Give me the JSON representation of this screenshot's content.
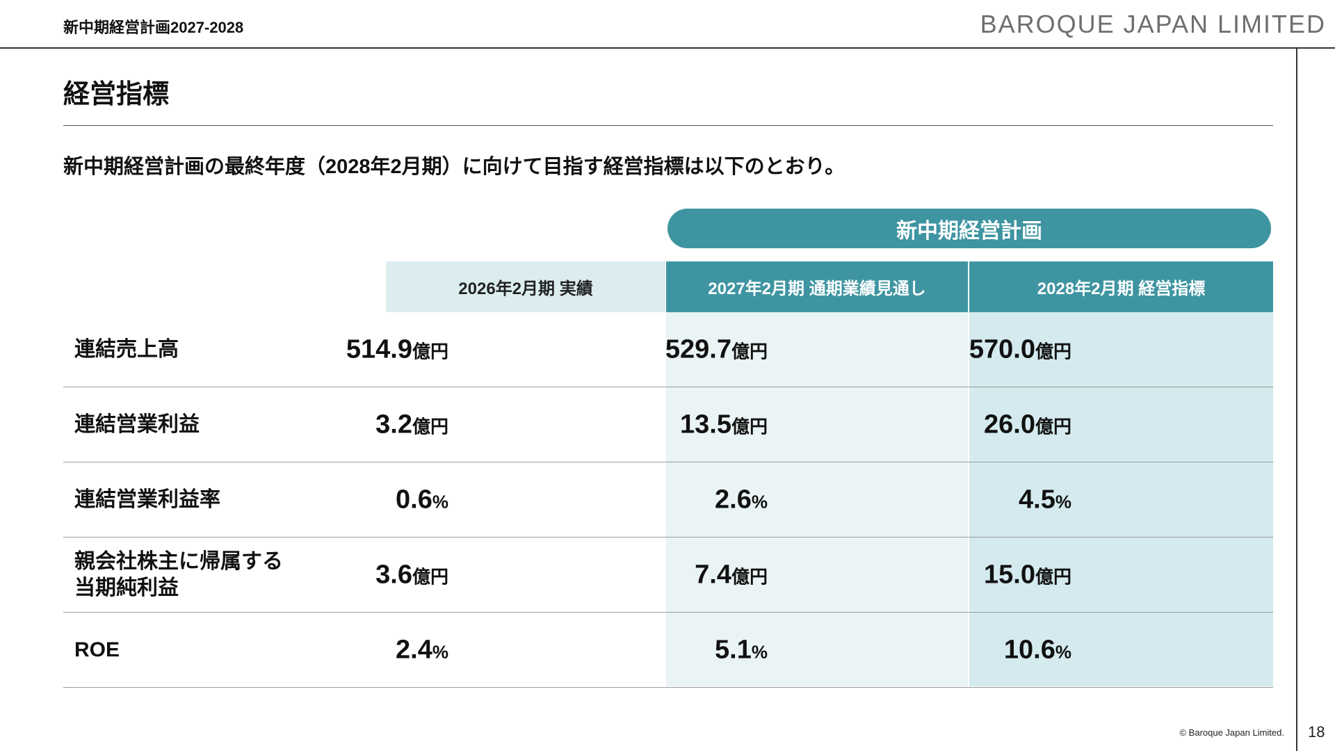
{
  "header": {
    "title": "新中期経営計画2027-2028",
    "brand": "BAROQUE JAPAN LIMITED"
  },
  "page_title": "経営指標",
  "lead": "新中期経営計画の最終年度（2028年2月期）に向けて目指す経営指標は以下のとおり。",
  "plan_banner": "新中期経営計画",
  "columns": [
    "2026年2月期 実績",
    "2027年2月期 通期業績見通し",
    "2028年2月期 経営指標"
  ],
  "rows": [
    {
      "label": "連結売上高",
      "label2": "",
      "values": [
        "514.9",
        "529.7",
        "570.0"
      ],
      "unit": "億円"
    },
    {
      "label": "連結営業利益",
      "label2": "",
      "values": [
        "3.2",
        "13.5",
        "26.0"
      ],
      "unit": "億円"
    },
    {
      "label": "連結営業利益率",
      "label2": "",
      "values": [
        "0.6",
        "2.6",
        "4.5"
      ],
      "unit": "%"
    },
    {
      "label": "親会社株主に帰属する",
      "label2": "当期純利益",
      "values": [
        "3.6",
        "7.4",
        "15.0"
      ],
      "unit": "億円"
    },
    {
      "label": "ROE",
      "label2": "",
      "values": [
        "2.4",
        "5.1",
        "10.6"
      ],
      "unit": "%"
    }
  ],
  "footer": {
    "copyright": "© Baroque Japan Limited.",
    "page_number": "18"
  },
  "colors": {
    "teal": "#3e95a1",
    "light_teal_header": "#dcedf0",
    "col_bg_forecast": "#eaf4f5",
    "col_bg_target": "#d4eaee"
  }
}
